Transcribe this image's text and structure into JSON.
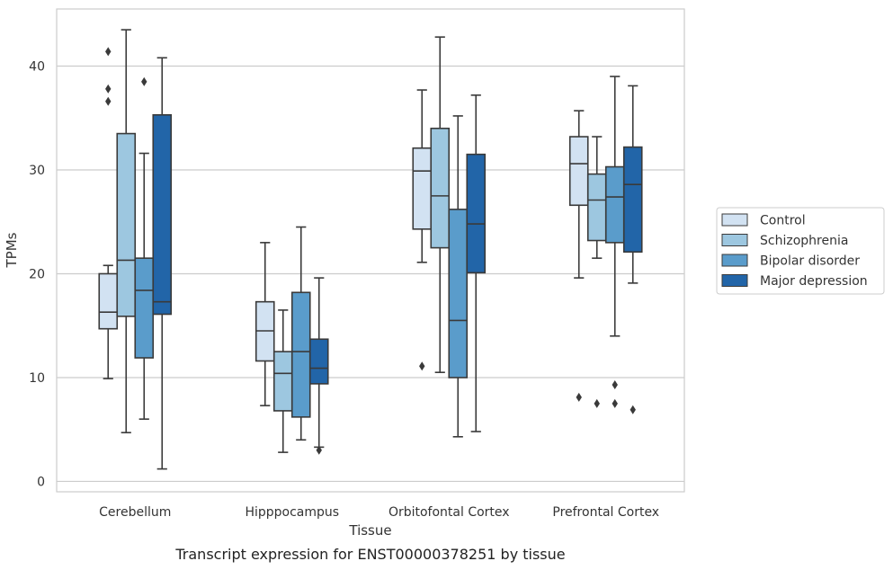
{
  "caption": "Transcript expression for ENST00000378251 by tissue",
  "chart_data": {
    "type": "box",
    "xlabel": "Tissue",
    "ylabel": "TPMs",
    "ylim": [
      -1,
      45.5
    ],
    "yticks": [
      0,
      10,
      20,
      30,
      40
    ],
    "grid": "y",
    "legend_position": "right",
    "categories": [
      "Cerebellum",
      "Hipppocampus",
      "Orbitofontal Cortex",
      "Prefrontal Cortex"
    ],
    "series": [
      {
        "name": "Control",
        "color": "#d2e2f2",
        "boxes": [
          {
            "whislo": 9.9,
            "q1": 14.7,
            "med": 16.3,
            "q3": 20.0,
            "whishi": 20.8,
            "fliers": [
              41.4,
              37.8,
              36.6
            ]
          },
          {
            "whislo": 7.3,
            "q1": 11.6,
            "med": 14.5,
            "q3": 17.3,
            "whishi": 23.0,
            "fliers": []
          },
          {
            "whislo": 21.1,
            "q1": 24.3,
            "med": 29.9,
            "q3": 32.1,
            "whishi": 37.7,
            "fliers": [
              11.1
            ]
          },
          {
            "whislo": 19.6,
            "q1": 26.6,
            "med": 30.6,
            "q3": 33.2,
            "whishi": 35.7,
            "fliers": [
              8.1
            ]
          }
        ]
      },
      {
        "name": "Schizophrenia",
        "color": "#9dc7e0",
        "boxes": [
          {
            "whislo": 4.7,
            "q1": 15.9,
            "med": 21.3,
            "q3": 33.5,
            "whishi": 43.5,
            "fliers": []
          },
          {
            "whislo": 2.8,
            "q1": 6.8,
            "med": 10.4,
            "q3": 12.5,
            "whishi": 16.5,
            "fliers": []
          },
          {
            "whislo": 10.5,
            "q1": 22.5,
            "med": 27.5,
            "q3": 34.0,
            "whishi": 42.8,
            "fliers": []
          },
          {
            "whislo": 21.5,
            "q1": 23.2,
            "med": 27.1,
            "q3": 29.6,
            "whishi": 33.2,
            "fliers": [
              7.5
            ]
          }
        ]
      },
      {
        "name": "Bipolar disorder",
        "color": "#5a9ccb",
        "boxes": [
          {
            "whislo": 6.0,
            "q1": 11.9,
            "med": 18.4,
            "q3": 21.5,
            "whishi": 31.6,
            "fliers": [
              38.5
            ]
          },
          {
            "whislo": 4.0,
            "q1": 6.2,
            "med": 12.5,
            "q3": 18.2,
            "whishi": 24.5,
            "fliers": []
          },
          {
            "whislo": 4.3,
            "q1": 10.0,
            "med": 15.5,
            "q3": 26.2,
            "whishi": 35.2,
            "fliers": []
          },
          {
            "whislo": 14.0,
            "q1": 23.0,
            "med": 27.4,
            "q3": 30.3,
            "whishi": 39.0,
            "fliers": [
              9.3,
              7.5
            ]
          }
        ]
      },
      {
        "name": "Major depression",
        "color": "#2265a8",
        "boxes": [
          {
            "whislo": 1.2,
            "q1": 16.1,
            "med": 17.3,
            "q3": 35.3,
            "whishi": 40.8,
            "fliers": []
          },
          {
            "whislo": 3.3,
            "q1": 9.4,
            "med": 10.9,
            "q3": 13.7,
            "whishi": 19.6,
            "fliers": [
              3.0
            ]
          },
          {
            "whislo": 4.8,
            "q1": 20.1,
            "med": 24.8,
            "q3": 31.5,
            "whishi": 37.2,
            "fliers": []
          },
          {
            "whislo": 19.1,
            "q1": 22.1,
            "med": 28.6,
            "q3": 32.2,
            "whishi": 38.1,
            "fliers": [
              6.9
            ]
          }
        ]
      }
    ]
  }
}
